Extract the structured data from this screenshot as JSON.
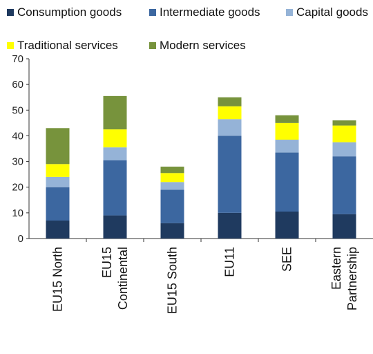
{
  "chart_data": {
    "type": "bar",
    "stacked": true,
    "categories": [
      [
        "EU15 North"
      ],
      [
        "EU15",
        "Continental"
      ],
      [
        "EU15 South"
      ],
      [
        "EU11"
      ],
      [
        "SEE"
      ],
      [
        "Eastern",
        "Partnership"
      ]
    ],
    "series": [
      {
        "name": "Consumption goods",
        "color": "#1f3a5f",
        "values": [
          7,
          9,
          6,
          10,
          10.5,
          9.5
        ]
      },
      {
        "name": "Intermediate goods",
        "color": "#3c67a0",
        "values": [
          13,
          21.5,
          13,
          30,
          23,
          22.5
        ]
      },
      {
        "name": "Capital goods",
        "color": "#95b3d7",
        "values": [
          4,
          5,
          3,
          6.5,
          5,
          5.5
        ]
      },
      {
        "name": "Traditional services",
        "color": "#ffff00",
        "values": [
          5,
          7,
          3.5,
          5,
          6.5,
          6.5
        ]
      },
      {
        "name": "Modern services",
        "color": "#77933c",
        "values": [
          14,
          13,
          2.5,
          3.5,
          3,
          2
        ]
      }
    ],
    "ylim": [
      0,
      70
    ],
    "yticks": [
      0,
      10,
      20,
      30,
      40,
      50,
      60,
      70
    ],
    "grid": false,
    "legend_position": "top"
  }
}
